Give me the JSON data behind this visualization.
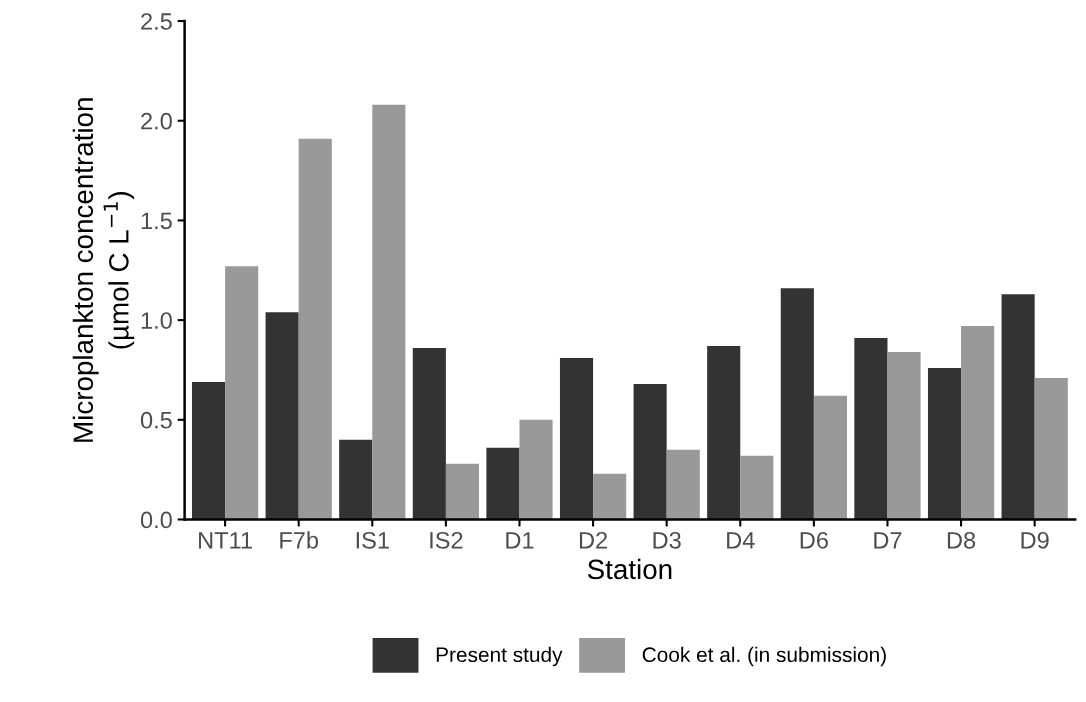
{
  "chart_data": {
    "type": "bar",
    "xlabel": "Station",
    "ylabel": "Microplankton concentration\n(µmol C L$^{−1}$)",
    "categories": [
      "NT11",
      "F7b",
      "IS1",
      "IS2",
      "D1",
      "D2",
      "D3",
      "D4",
      "D6",
      "D7",
      "D8",
      "D9"
    ],
    "series": [
      {
        "name": "Present study",
        "color": "#333333",
        "values": [
          0.69,
          1.04,
          0.4,
          0.86,
          0.36,
          0.81,
          0.68,
          0.87,
          1.16,
          0.91,
          0.76,
          1.13
        ]
      },
      {
        "name": "Cook et al. (in submission)",
        "color": "#999999",
        "values": [
          1.27,
          1.91,
          2.08,
          0.28,
          0.5,
          0.23,
          0.35,
          0.32,
          0.62,
          0.84,
          0.97,
          0.71
        ]
      }
    ],
    "ylim": [
      0,
      2.5
    ],
    "yticks": [
      {
        "value": 0,
        "label": "0.0"
      },
      {
        "value": 0.5,
        "label": "0.5"
      },
      {
        "value": 1,
        "label": "1.0"
      },
      {
        "value": 1.5,
        "label": "1.5"
      },
      {
        "value": 2,
        "label": "2.0"
      },
      {
        "value": 2.5,
        "label": "2.5"
      }
    ],
    "grid": false,
    "legend": "bottom"
  }
}
